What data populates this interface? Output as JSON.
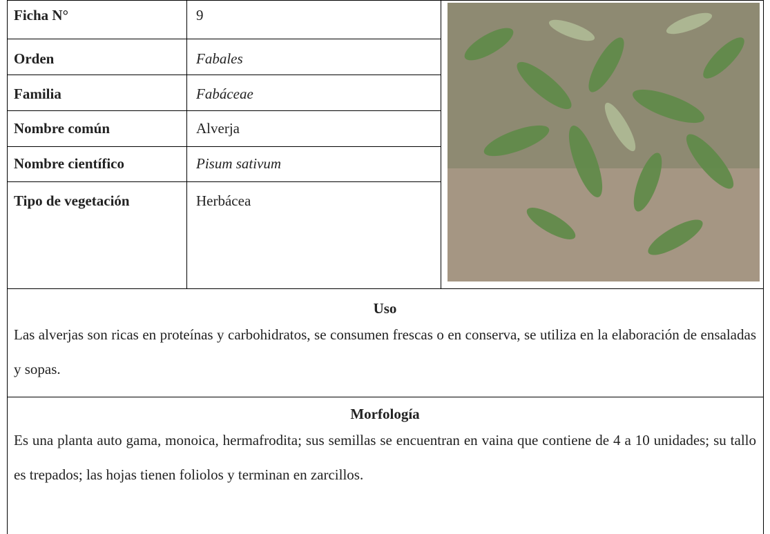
{
  "table": {
    "rows": [
      [
        "Ficha N°",
        "9"
      ],
      [
        "Orden",
        "Fabales"
      ],
      [
        "Familia",
        "Fabáceae"
      ],
      [
        "Nombre común",
        "Alverja"
      ],
      [
        "Nombre científico",
        "Pisum sativum"
      ],
      [
        "Tipo de vegetación",
        "Herbácea"
      ]
    ]
  },
  "uso": {
    "heading": "Uso",
    "text": "Las alverjas son ricas en proteínas y carbohidratos, se consumen frescas o en conserva, se utiliza en la elaboración de ensaladas y sopas."
  },
  "morfologia": {
    "heading": "Morfología",
    "text": "Es una planta auto gama, monoica, hermafrodita; sus semillas se encuentran en vaina que contiene de 4 a 10 unidades; su tallo es trepados; las hojas tienen foliolos y terminan en zarcillos."
  }
}
